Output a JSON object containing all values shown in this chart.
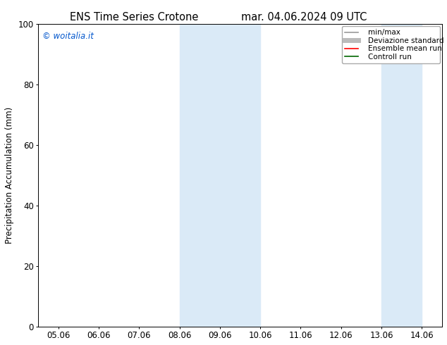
{
  "title_left": "ENS Time Series Crotone",
  "title_right": "mar. 04.06.2024 09 UTC",
  "ylabel": "Precipitation Accumulation (mm)",
  "ylim": [
    0,
    100
  ],
  "yticks": [
    0,
    20,
    40,
    60,
    80,
    100
  ],
  "xtick_labels": [
    "05.06",
    "06.06",
    "07.06",
    "08.06",
    "09.06",
    "10.06",
    "11.06",
    "12.06",
    "13.06",
    "14.06"
  ],
  "x_positions": [
    5.06,
    6.06,
    7.06,
    8.06,
    9.06,
    10.06,
    11.06,
    12.06,
    13.06,
    14.06
  ],
  "xlim": [
    4.56,
    14.56
  ],
  "watermark": "© woitalia.it",
  "watermark_color": "#0055cc",
  "bg_color": "#ffffff",
  "shaded_regions": [
    {
      "x_start": 8.06,
      "x_end": 10.06,
      "color": "#daeaf7"
    },
    {
      "x_start": 13.06,
      "x_end": 14.06,
      "color": "#daeaf7"
    }
  ],
  "legend_entries": [
    {
      "label": "min/max",
      "color": "#999999",
      "lw": 1.2,
      "type": "line"
    },
    {
      "label": "Deviazione standard",
      "color": "#bbbbbb",
      "lw": 5,
      "type": "line"
    },
    {
      "label": "Ensemble mean run",
      "color": "#ff0000",
      "lw": 1.2,
      "type": "line"
    },
    {
      "label": "Controll run",
      "color": "#006600",
      "lw": 1.2,
      "type": "line"
    }
  ],
  "title_fontsize": 10.5,
  "tick_fontsize": 8.5,
  "ylabel_fontsize": 8.5,
  "legend_fontsize": 7.5,
  "watermark_fontsize": 8.5
}
